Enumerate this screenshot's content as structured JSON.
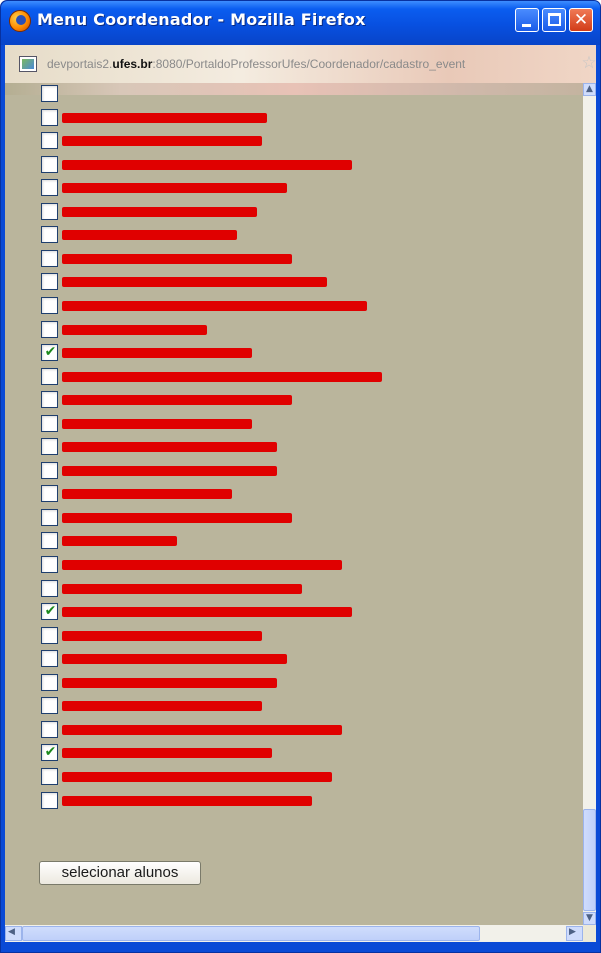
{
  "window": {
    "title": "Menu Coordenador - Mozilla Firefox",
    "close_glyph": "✕"
  },
  "address_bar": {
    "url_prefix": "devportais2.",
    "url_domain": "ufes.br",
    "url_suffix": ":8080/PortaldoProfessorUfes/Coordenador/cadastro_event",
    "bookmark_icon": "☆"
  },
  "students": [
    {
      "checked": false,
      "name_redacted": true
    },
    {
      "checked": false,
      "name_redacted": true
    },
    {
      "checked": false,
      "name_redacted": true
    },
    {
      "checked": false,
      "name_redacted": true
    },
    {
      "checked": false,
      "name_redacted": true
    },
    {
      "checked": false,
      "name_redacted": true
    },
    {
      "checked": false,
      "name_redacted": true
    },
    {
      "checked": false,
      "name_redacted": true
    },
    {
      "checked": false,
      "name_redacted": true
    },
    {
      "checked": false,
      "name_redacted": true
    },
    {
      "checked": false,
      "name_redacted": true
    },
    {
      "checked": true,
      "name_redacted": true
    },
    {
      "checked": false,
      "name_redacted": true
    },
    {
      "checked": false,
      "name_redacted": true
    },
    {
      "checked": false,
      "name_redacted": true
    },
    {
      "checked": false,
      "name_redacted": true
    },
    {
      "checked": false,
      "name_redacted": true
    },
    {
      "checked": false,
      "name_redacted": true
    },
    {
      "checked": false,
      "name_redacted": true
    },
    {
      "checked": false,
      "name_redacted": true
    },
    {
      "checked": false,
      "name_redacted": true
    },
    {
      "checked": false,
      "name_redacted": true
    },
    {
      "checked": true,
      "name_redacted": true
    },
    {
      "checked": false,
      "name_redacted": true
    },
    {
      "checked": false,
      "name_redacted": true
    },
    {
      "checked": false,
      "name_redacted": true
    },
    {
      "checked": false,
      "name_redacted": true
    },
    {
      "checked": false,
      "name_redacted": true
    },
    {
      "checked": true,
      "name_redacted": true
    },
    {
      "checked": false,
      "name_redacted": true
    },
    {
      "checked": false,
      "name_redacted": true
    }
  ],
  "form": {
    "submit_label": "selecionar alunos"
  },
  "colors": {
    "content_background": "#bab59c",
    "redaction": "#e00000",
    "titlebar": "#0850e0"
  },
  "icons": {
    "app": "firefox-icon",
    "page": "page-icon",
    "bookmark": "star-icon"
  }
}
